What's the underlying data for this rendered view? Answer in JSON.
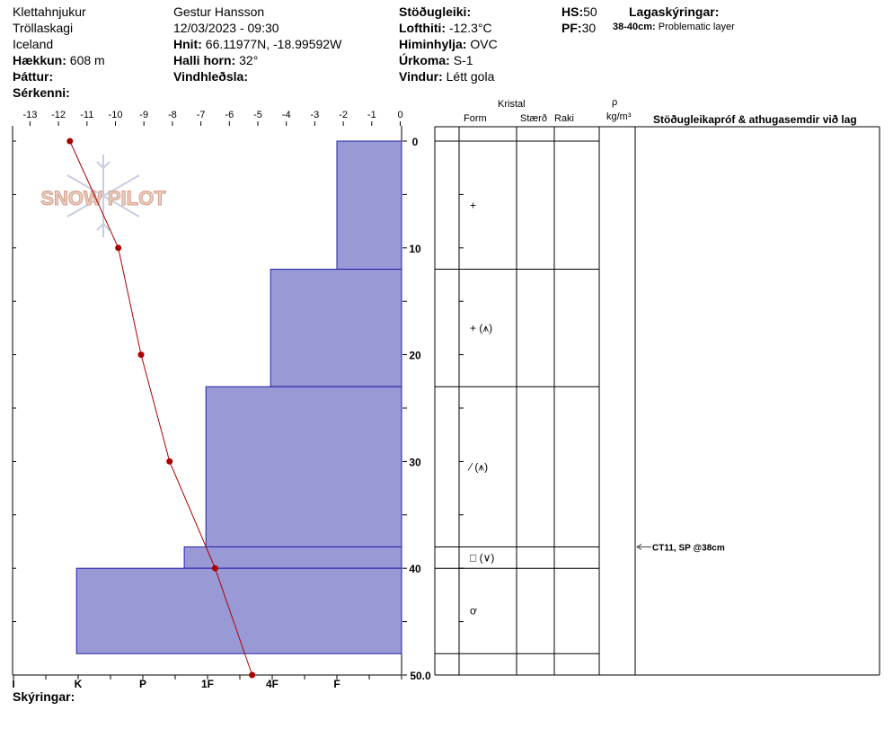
{
  "header": {
    "location": "Klettahnjukur",
    "region": "Tröllaskagi",
    "country": "Iceland",
    "elevation_label": "Hækkun:",
    "elevation_value": "608 m",
    "aspect_label": "Þáttur:",
    "features_label": "Sérkenni:",
    "observer": "Gestur Hansson",
    "datetime": "12/03/2023 - 09:30",
    "coords_label": "Hnit:",
    "coords_value": "66.11977N, -18.99592W",
    "slope_label": "Halli horn:",
    "slope_value": "32°",
    "wind_transport_label": "Vindhleðsla:",
    "stability_label": "Stöðugleiki:",
    "airtemp_label": "Lofthiti:",
    "airtemp_value": "-12.3°C",
    "sky_label": "Himinhylja:",
    "sky_value": "OVC",
    "precip_label": "Úrkoma:",
    "precip_value": "S-1",
    "wind_label": "Vindur:",
    "wind_value": "Létt gola",
    "hs_label": "HS:",
    "hs_value": "50",
    "pf_label": "PF:",
    "pf_value": "30",
    "layer_notes_label": "Lagaskýringar:",
    "layer_note_range": "38-40cm:",
    "layer_note_text": "Problematic layer"
  },
  "table_headers": {
    "crystal": "Kristal",
    "form": "Form",
    "size": "Stærð",
    "moisture": "Raki",
    "rho": "ρ",
    "density_unit": "kg/m³",
    "stability_tests": "Stöðugleikapróf & athugasemdir við lag"
  },
  "legend_label": "Skýringar:",
  "watermark": "SNOW PILOT",
  "test_annotation": "CT11, SP @38cm",
  "colors": {
    "hardness_fill": "#9999d6",
    "hardness_stroke": "#2222aa",
    "temp_line": "#aa0000"
  },
  "chart_data": {
    "type": "snow-profile",
    "temp_axis": {
      "ticks": [
        -13,
        -12,
        -11,
        -10,
        -9,
        -8,
        -7,
        -6,
        -5,
        -4,
        -3,
        -2,
        -1,
        0
      ],
      "range": [
        -13.5,
        0
      ]
    },
    "depth_axis": {
      "ticks": [
        0,
        10,
        20,
        30,
        40
      ],
      "end_label": "50.0",
      "range": [
        -1.3,
        50
      ]
    },
    "hardness_axis": {
      "labels": [
        "I",
        "K",
        "P",
        "1F",
        "4F",
        "F"
      ],
      "values": [
        1,
        2,
        3,
        4,
        5,
        6
      ]
    },
    "temperature_profile": [
      {
        "depth": 0,
        "temp": -11.6
      },
      {
        "depth": 10,
        "temp": -9.9
      },
      {
        "depth": 20,
        "temp": -9.1
      },
      {
        "depth": 30,
        "temp": -8.1
      },
      {
        "depth": 40,
        "temp": -6.5
      },
      {
        "depth": 50,
        "temp": -5.2
      }
    ],
    "layers": [
      {
        "top": 0,
        "bottom": 12,
        "hardness": 2.0,
        "grain": "+",
        "secondary": ""
      },
      {
        "top": 12,
        "bottom": 23,
        "hardness": 4.05,
        "grain": "+",
        "secondary": "(⩚)"
      },
      {
        "top": 23,
        "bottom": 38,
        "hardness": 6.05,
        "grain": "⁄",
        "secondary": "(⩚)"
      },
      {
        "top": 38,
        "bottom": 40,
        "hardness": 6.72,
        "grain": "□",
        "secondary": "(∨)"
      },
      {
        "top": 40,
        "bottom": 48,
        "hardness": 10.05,
        "grain": "ơ",
        "secondary": ""
      }
    ],
    "test_depth": 38
  }
}
